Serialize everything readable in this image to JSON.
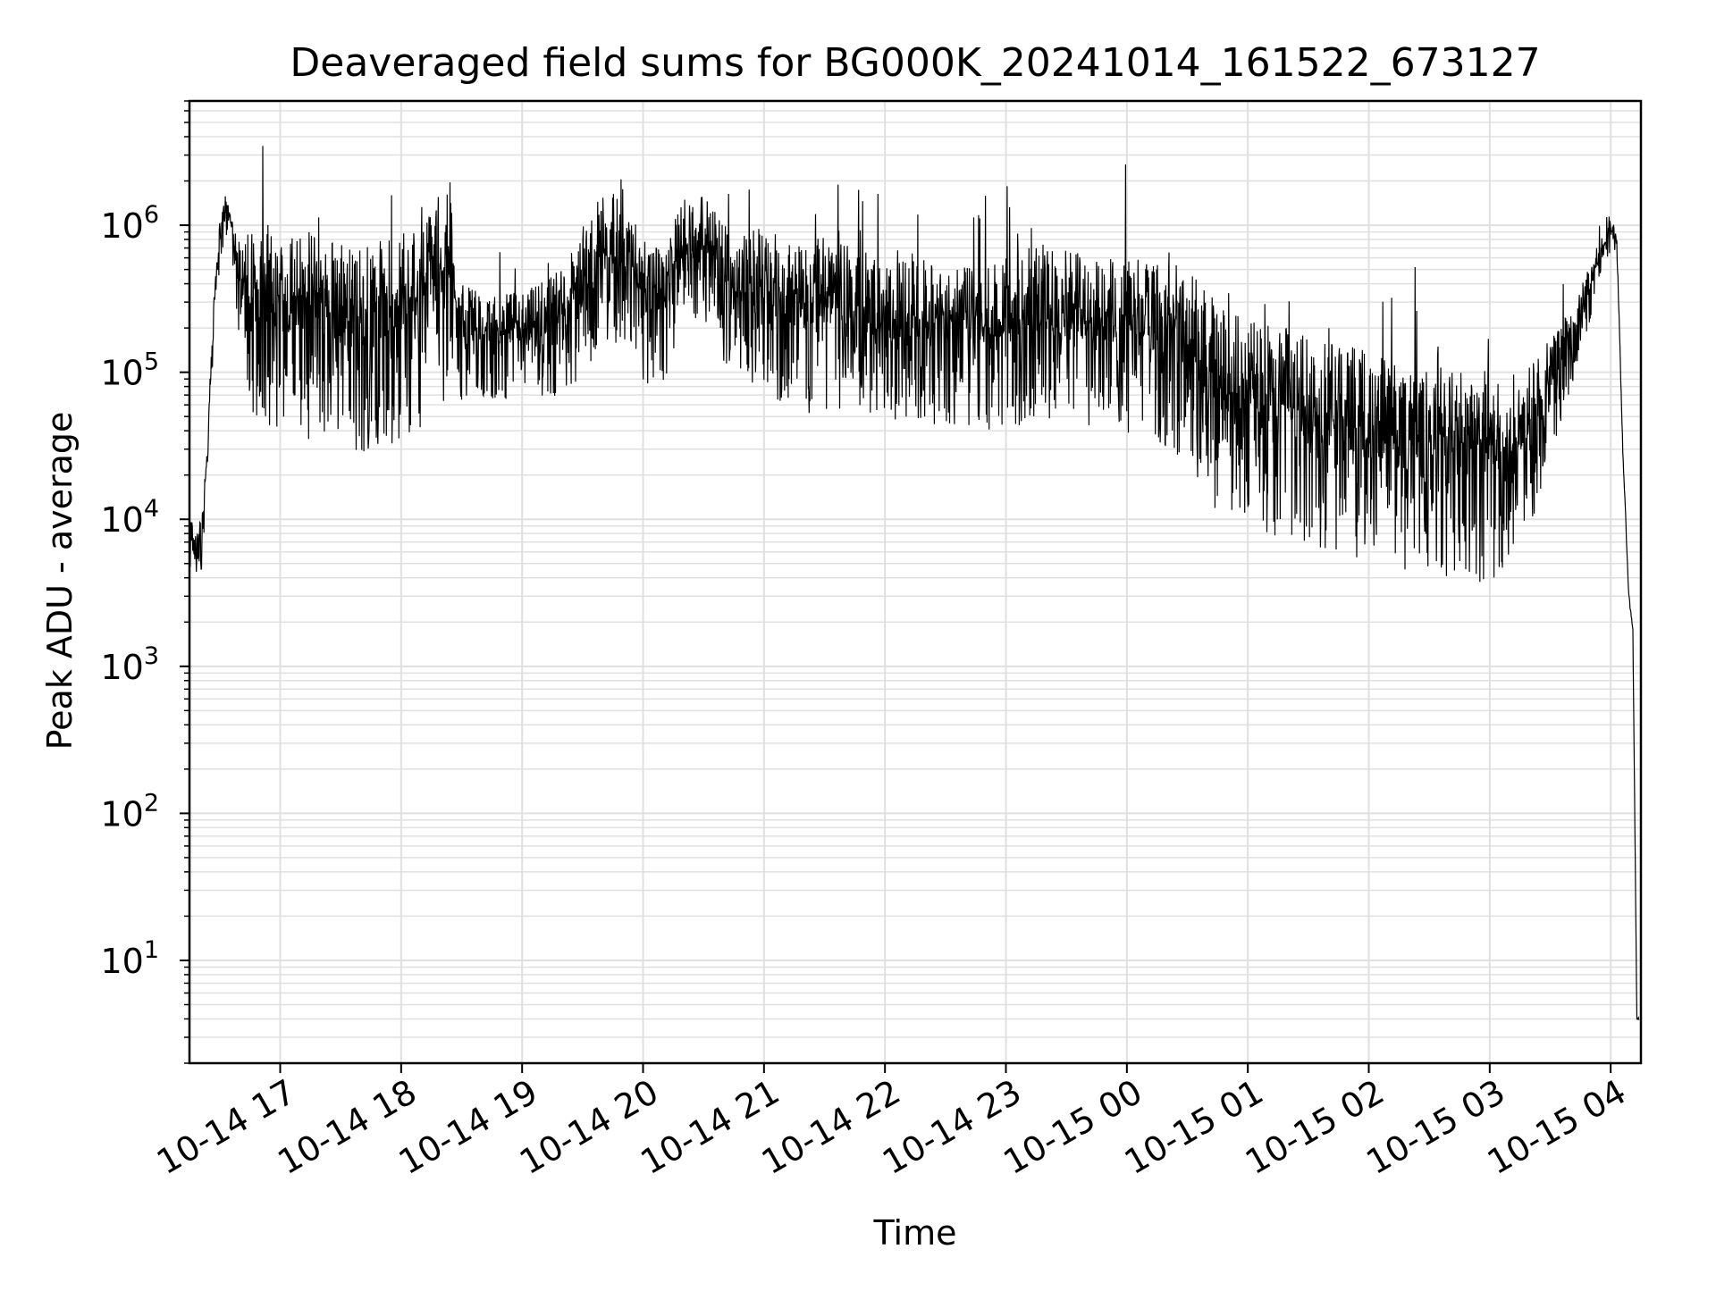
{
  "chart_data": {
    "type": "line",
    "title": "Deaveraged field sums for BG000K_20241014_161522_673127",
    "xlabel": "Time",
    "ylabel": "Peak ADU - average",
    "yscale": "log",
    "grid": true,
    "line_color": "#000000",
    "grid_color": "#e0e0e0",
    "xlim": [
      "2024-10-14 16:15",
      "2024-10-15 04:15"
    ],
    "ylim": [
      2,
      7000000
    ],
    "x_ticks": [
      "10-14 17",
      "10-14 18",
      "10-14 19",
      "10-14 20",
      "10-14 21",
      "10-14 22",
      "10-14 23",
      "10-15 00",
      "10-15 01",
      "10-15 02",
      "10-15 03",
      "10-15 04"
    ],
    "y_ticks": [
      {
        "value": 10,
        "base": "10",
        "exp": "1"
      },
      {
        "value": 100,
        "base": "10",
        "exp": "2"
      },
      {
        "value": 1000,
        "base": "10",
        "exp": "3"
      },
      {
        "value": 10000,
        "base": "10",
        "exp": "4"
      },
      {
        "value": 100000,
        "base": "10",
        "exp": "5"
      },
      {
        "value": 1000000,
        "base": "10",
        "exp": "6"
      }
    ],
    "series": [
      {
        "x": [
          "2024-10-14 16:15",
          "2024-10-14 16:18",
          "2024-10-14 16:21",
          "2024-10-14 16:24",
          "2024-10-14 16:27",
          "2024-10-14 16:30",
          "2024-10-14 16:33",
          "2024-10-14 16:36",
          "2024-10-14 16:40",
          "2024-10-14 16:45",
          "2024-10-14 16:50",
          "2024-10-14 17:00",
          "2024-10-14 17:10",
          "2024-10-14 17:20",
          "2024-10-14 17:30",
          "2024-10-14 17:40",
          "2024-10-14 17:50",
          "2024-10-14 18:00",
          "2024-10-14 18:10",
          "2024-10-14 18:20",
          "2024-10-14 18:25",
          "2024-10-14 18:30",
          "2024-10-14 18:40",
          "2024-10-14 18:50",
          "2024-10-14 19:00",
          "2024-10-14 19:10",
          "2024-10-14 19:20",
          "2024-10-14 19:30",
          "2024-10-14 19:40",
          "2024-10-14 19:50",
          "2024-10-14 20:00",
          "2024-10-14 20:10",
          "2024-10-14 20:20",
          "2024-10-14 20:30",
          "2024-10-14 20:40",
          "2024-10-14 20:50",
          "2024-10-14 21:00",
          "2024-10-14 21:10",
          "2024-10-14 21:20",
          "2024-10-14 21:30",
          "2024-10-14 21:40",
          "2024-10-14 21:50",
          "2024-10-14 22:00",
          "2024-10-14 22:10",
          "2024-10-14 22:20",
          "2024-10-14 22:30",
          "2024-10-14 22:40",
          "2024-10-14 22:50",
          "2024-10-14 23:00",
          "2024-10-14 23:10",
          "2024-10-14 23:20",
          "2024-10-14 23:30",
          "2024-10-14 23:40",
          "2024-10-14 23:50",
          "2024-10-15 00:00",
          "2024-10-15 00:10",
          "2024-10-15 00:20",
          "2024-10-15 00:30",
          "2024-10-15 00:40",
          "2024-10-15 00:50",
          "2024-10-15 01:00",
          "2024-10-15 01:15",
          "2024-10-15 01:30",
          "2024-10-15 01:45",
          "2024-10-15 02:00",
          "2024-10-15 02:15",
          "2024-10-15 02:30",
          "2024-10-15 02:45",
          "2024-10-15 03:00",
          "2024-10-15 03:10",
          "2024-10-15 03:20",
          "2024-10-15 03:30",
          "2024-10-15 03:40",
          "2024-10-15 03:50",
          "2024-10-15 03:55",
          "2024-10-15 04:00",
          "2024-10-15 04:03",
          "2024-10-15 04:06",
          "2024-10-15 04:09",
          "2024-10-15 04:11",
          "2024-10-15 04:13",
          "2024-10-15 04:14"
        ],
        "y": [
          9000,
          7000,
          8000,
          30000,
          300000,
          900000,
          1400000,
          1000000,
          500000,
          450000,
          500000,
          400000,
          450000,
          380000,
          350000,
          300000,
          350000,
          400000,
          450000,
          700000,
          800000,
          250000,
          230000,
          220000,
          240000,
          260000,
          320000,
          500000,
          900000,
          1100000,
          450000,
          400000,
          900000,
          1000000,
          600000,
          500000,
          550000,
          450000,
          380000,
          420000,
          400000,
          350000,
          300000,
          300000,
          320000,
          280000,
          300000,
          280000,
          300000,
          350000,
          380000,
          360000,
          330000,
          310000,
          300000,
          280000,
          260000,
          240000,
          150000,
          120000,
          100000,
          90000,
          80000,
          70000,
          60000,
          50000,
          45000,
          45000,
          45000,
          45000,
          60000,
          100000,
          200000,
          450000,
          700000,
          1000000,
          800000,
          30000,
          3000,
          1800,
          4,
          4
        ],
        "noise": [
          0.25,
          0.25,
          0.25,
          0.2,
          0.2,
          0.2,
          0.2,
          0.2,
          0.5,
          0.8,
          0.85,
          0.9,
          0.9,
          0.9,
          0.9,
          0.9,
          0.9,
          0.9,
          0.9,
          0.9,
          0.8,
          0.5,
          0.45,
          0.45,
          0.45,
          0.5,
          0.55,
          0.6,
          0.7,
          0.7,
          0.6,
          0.6,
          0.6,
          0.6,
          0.6,
          0.65,
          0.7,
          0.75,
          0.75,
          0.75,
          0.7,
          0.7,
          0.65,
          0.7,
          0.7,
          0.7,
          0.7,
          0.7,
          0.75,
          0.75,
          0.75,
          0.75,
          0.75,
          0.75,
          0.75,
          0.8,
          0.8,
          0.85,
          0.9,
          0.9,
          0.9,
          0.9,
          0.9,
          0.9,
          0.9,
          0.9,
          0.9,
          0.9,
          0.9,
          0.8,
          0.7,
          0.5,
          0.35,
          0.25,
          0.2,
          0.15,
          0.1,
          0.05,
          0.05,
          0.02,
          0.02,
          0.02
        ]
      }
    ]
  }
}
